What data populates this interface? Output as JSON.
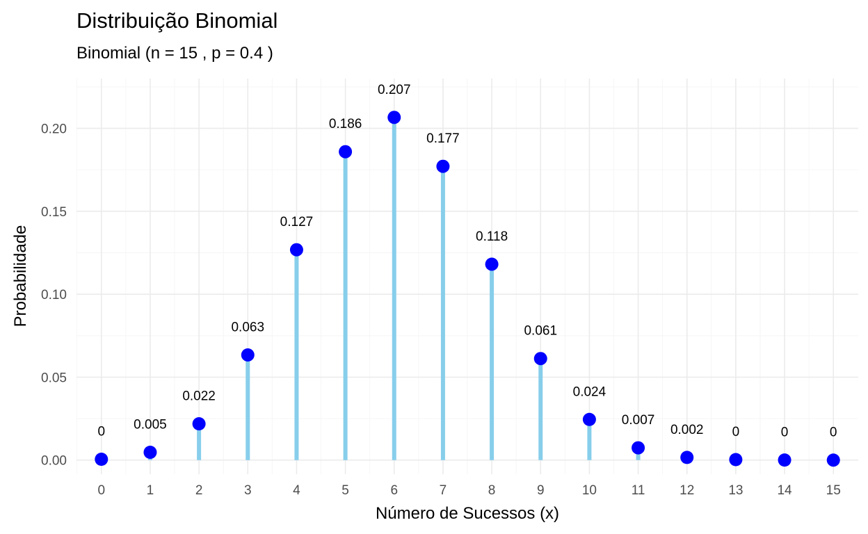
{
  "chart_data": {
    "type": "bar",
    "title": "Distribuição Binomial",
    "subtitle": "Binomial (n = 15 , p = 0.4 )",
    "xlabel": "Número de Sucessos (x)",
    "ylabel": "Probabilidade",
    "x": [
      0,
      1,
      2,
      3,
      4,
      5,
      6,
      7,
      8,
      9,
      10,
      11,
      12,
      13,
      14,
      15
    ],
    "values": [
      0.0005,
      0.0047,
      0.0219,
      0.0634,
      0.1268,
      0.1859,
      0.2066,
      0.1771,
      0.1181,
      0.0612,
      0.0245,
      0.0074,
      0.0016,
      0.0003,
      3e-05,
      1e-06
    ],
    "data_labels": [
      "0",
      "0.005",
      "0.022",
      "0.063",
      "0.127",
      "0.186",
      "0.207",
      "0.177",
      "0.118",
      "0.061",
      "0.024",
      "0.007",
      "0.002",
      "0",
      "0",
      "0"
    ],
    "yticks": [
      0.0,
      0.05,
      0.1,
      0.15,
      0.2
    ],
    "ytick_labels": [
      "0.00",
      "0.05",
      "0.10",
      "0.15",
      "0.20"
    ],
    "xtick_labels": [
      "0",
      "1",
      "2",
      "3",
      "4",
      "5",
      "6",
      "7",
      "8",
      "9",
      "10",
      "11",
      "12",
      "13",
      "14",
      "15"
    ],
    "ylim": [
      -0.0085,
      0.23
    ],
    "xlim": [
      -0.51,
      15.51
    ],
    "grid": true,
    "legend": "none",
    "colors": {
      "stem": "#87ceeb",
      "point": "#0000ff"
    }
  }
}
